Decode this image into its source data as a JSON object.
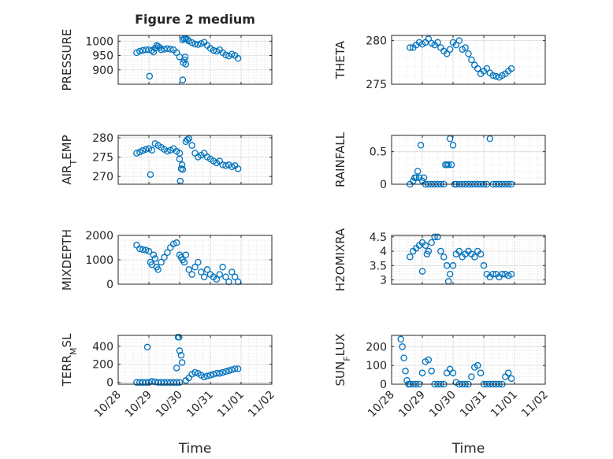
{
  "chart_data": [
    {
      "type": "scatter",
      "title": "Figure 2 medium",
      "ylabel": "PRESSURE",
      "xlabel": "",
      "ylim": [
        850,
        1020
      ],
      "yticks": [
        900,
        950,
        1000
      ],
      "xlim": [
        0,
        5
      ],
      "x_tick_labels": [
        "10/28",
        "10/29",
        "10/30",
        "10/31",
        "11/01",
        "11/02"
      ],
      "grid": true,
      "series": [
        {
          "x": [
            0.6,
            0.7,
            0.8,
            0.9,
            1.0,
            1.1,
            1.15,
            1.2,
            1.25,
            1.3,
            1.35,
            1.4,
            1.5,
            1.6,
            1.7,
            1.8,
            1.9,
            2.0,
            2.1,
            2.15,
            2.2,
            2.25,
            2.3,
            2.4,
            2.5,
            2.6,
            2.7,
            2.8,
            2.9,
            3.0,
            3.1,
            3.2,
            3.3,
            3.4,
            3.5,
            3.6,
            3.7,
            3.8,
            3.9,
            1.02,
            2.1,
            2.12,
            2.15,
            2.18,
            2.2
          ],
          "y": [
            960,
            965,
            968,
            970,
            970,
            968,
            962,
            975,
            985,
            982,
            978,
            970,
            972,
            974,
            972,
            970,
            960,
            945,
            1005,
            1008,
            1008,
            1006,
            1000,
            995,
            990,
            988,
            992,
            996,
            985,
            975,
            968,
            965,
            970,
            960,
            952,
            948,
            955,
            950,
            940,
            878,
            865,
            925,
            935,
            945,
            920
          ]
        }
      ]
    },
    {
      "type": "scatter",
      "ylabel": "THETA",
      "xlabel": "",
      "ylim": [
        275,
        280.6
      ],
      "yticks": [
        275,
        280
      ],
      "xlim": [
        0,
        5
      ],
      "x_tick_labels": [
        "10/28",
        "10/29",
        "10/30",
        "10/31",
        "11/01",
        "11/02"
      ],
      "grid": true,
      "series": [
        {
          "x": [
            0.6,
            0.7,
            0.8,
            0.9,
            1.0,
            1.1,
            1.2,
            1.3,
            1.4,
            1.5,
            1.6,
            1.7,
            1.8,
            1.9,
            2.0,
            2.1,
            2.2,
            2.3,
            2.4,
            2.5,
            2.6,
            2.7,
            2.8,
            2.9,
            3.0,
            3.1,
            3.2,
            3.3,
            3.4,
            3.5,
            3.6,
            3.7,
            3.8,
            3.9
          ],
          "y": [
            279.2,
            279.2,
            279.5,
            279.8,
            279.6,
            279.8,
            280.2,
            279.7,
            279.5,
            279.8,
            279.2,
            278.8,
            278.5,
            279.0,
            279.8,
            279.5,
            280.0,
            279.0,
            279.2,
            278.5,
            277.8,
            277.2,
            276.8,
            276.2,
            276.5,
            276.8,
            276.3,
            276.0,
            275.9,
            275.8,
            276.0,
            276.2,
            276.5,
            276.8
          ]
        }
      ]
    },
    {
      "type": "scatter",
      "ylabel": "AIR_TEMP",
      "xlabel": "",
      "ylim": [
        268,
        280.6
      ],
      "yticks": [
        270,
        275,
        280
      ],
      "xlim": [
        0,
        5
      ],
      "x_tick_labels": [
        "10/28",
        "10/29",
        "10/30",
        "10/31",
        "11/01",
        "11/02"
      ],
      "grid": true,
      "series": [
        {
          "x": [
            0.6,
            0.7,
            0.8,
            0.9,
            1.0,
            1.1,
            1.2,
            1.3,
            1.4,
            1.5,
            1.6,
            1.7,
            1.8,
            1.9,
            2.0,
            2.2,
            2.25,
            2.3,
            2.4,
            2.5,
            2.6,
            2.7,
            2.8,
            2.9,
            3.0,
            3.1,
            3.2,
            3.3,
            3.4,
            3.5,
            3.6,
            3.7,
            3.8,
            3.9,
            1.05,
            2.0,
            2.02,
            2.05,
            2.08,
            2.1
          ],
          "y": [
            276,
            276.3,
            276.7,
            277,
            277.2,
            276.8,
            278.5,
            278.0,
            277.5,
            277.0,
            276.5,
            276.8,
            277.2,
            276.5,
            276.0,
            279.0,
            279.5,
            279.8,
            278.0,
            276.0,
            275.0,
            275.5,
            276.0,
            275.0,
            274.5,
            274.0,
            273.5,
            274.0,
            273.0,
            272.8,
            273.0,
            272.5,
            272.8,
            272.0,
            270.5,
            274.5,
            268.8,
            272.0,
            273.0,
            271.8
          ]
        }
      ]
    },
    {
      "type": "scatter",
      "ylabel": "RAINFALL",
      "xlabel": "",
      "ylim": [
        0,
        0.75
      ],
      "yticks": [
        0,
        0.5
      ],
      "xlim": [
        0,
        5
      ],
      "x_tick_labels": [
        "10/28",
        "10/29",
        "10/30",
        "10/31",
        "11/01",
        "11/02"
      ],
      "grid": true,
      "series": [
        {
          "x": [
            0.6,
            0.7,
            0.75,
            0.8,
            0.85,
            0.9,
            0.95,
            1.0,
            1.05,
            1.1,
            1.2,
            1.3,
            1.4,
            1.5,
            1.6,
            1.7,
            1.75,
            1.8,
            1.85,
            1.9,
            1.95,
            2.0,
            2.05,
            2.1,
            2.2,
            2.3,
            2.4,
            2.5,
            2.6,
            2.7,
            2.8,
            2.9,
            3.0,
            3.1,
            3.2,
            3.3,
            3.4,
            3.5,
            3.6,
            3.7,
            3.8,
            3.9
          ],
          "y": [
            0,
            0.05,
            0.1,
            0.1,
            0.2,
            0.1,
            0.6,
            0.05,
            0.1,
            0,
            0,
            0,
            0,
            0,
            0,
            0,
            0.3,
            0.3,
            0.3,
            0.7,
            0.3,
            0.6,
            0,
            0,
            0,
            0,
            0,
            0,
            0,
            0,
            0,
            0,
            0,
            0,
            0.7,
            0,
            0,
            0,
            0,
            0,
            0,
            0
          ]
        }
      ]
    },
    {
      "type": "scatter",
      "ylabel": "MIXDEPTH",
      "xlabel": "",
      "ylim": [
        0,
        2000
      ],
      "yticks": [
        0,
        1000,
        2000
      ],
      "xlim": [
        0,
        5
      ],
      "x_tick_labels": [
        "10/28",
        "10/29",
        "10/30",
        "10/31",
        "11/01",
        "11/02"
      ],
      "grid": true,
      "series": [
        {
          "x": [
            0.6,
            0.7,
            0.8,
            0.9,
            1.0,
            1.05,
            1.1,
            1.15,
            1.2,
            1.25,
            1.3,
            1.4,
            1.5,
            1.6,
            1.7,
            1.8,
            1.9,
            2.0,
            2.05,
            2.1,
            2.15,
            2.2,
            2.3,
            2.4,
            2.5,
            2.6,
            2.7,
            2.8,
            2.9,
            3.0,
            3.1,
            3.2,
            3.3,
            3.4,
            3.5,
            3.6,
            3.7,
            3.8,
            3.9
          ],
          "y": [
            1600,
            1450,
            1420,
            1400,
            1350,
            900,
            800,
            1200,
            1050,
            700,
            600,
            900,
            1100,
            1300,
            1500,
            1650,
            1700,
            1200,
            1100,
            1000,
            900,
            1200,
            600,
            400,
            700,
            900,
            500,
            300,
            600,
            400,
            300,
            200,
            400,
            700,
            300,
            100,
            500,
            300,
            100
          ]
        }
      ]
    },
    {
      "type": "scatter",
      "ylabel": "H2OMIXRA",
      "xlabel": "",
      "ylim": [
        2.85,
        4.55
      ],
      "yticks": [
        3,
        3.5,
        4,
        4.5
      ],
      "xlim": [
        0,
        5
      ],
      "x_tick_labels": [
        "10/28",
        "10/29",
        "10/30",
        "10/31",
        "11/01",
        "11/02"
      ],
      "grid": true,
      "series": [
        {
          "x": [
            0.6,
            0.7,
            0.8,
            0.9,
            1.0,
            1.1,
            1.15,
            1.2,
            1.3,
            1.4,
            1.5,
            1.6,
            1.7,
            1.8,
            1.9,
            2.0,
            2.1,
            2.2,
            2.3,
            2.4,
            2.5,
            2.6,
            2.7,
            2.8,
            2.9,
            3.0,
            3.1,
            3.2,
            3.3,
            3.4,
            3.5,
            3.6,
            3.7,
            3.8,
            3.9,
            1.0,
            1.85
          ],
          "y": [
            3.8,
            4.0,
            4.1,
            4.2,
            4.3,
            4.2,
            3.9,
            4.0,
            4.3,
            4.5,
            4.5,
            4.0,
            3.8,
            3.5,
            3.2,
            3.5,
            3.9,
            4.0,
            3.8,
            3.9,
            4.0,
            3.9,
            3.8,
            4.0,
            3.9,
            3.5,
            3.2,
            3.1,
            3.2,
            3.2,
            3.1,
            3.2,
            3.2,
            3.15,
            3.2,
            3.3,
            2.95
          ]
        }
      ]
    },
    {
      "type": "scatter",
      "ylabel": "TERR_MSL",
      "xlabel": "Time",
      "ylim": [
        -20,
        520
      ],
      "yticks": [
        0,
        200,
        400
      ],
      "xlim": [
        0,
        5
      ],
      "x_tick_labels": [
        "10/28",
        "10/29",
        "10/30",
        "10/31",
        "11/01",
        "11/02"
      ],
      "grid": true,
      "series": [
        {
          "x": [
            0.6,
            0.7,
            0.8,
            0.9,
            1.0,
            1.1,
            1.2,
            1.3,
            1.4,
            1.5,
            1.6,
            1.7,
            1.8,
            1.9,
            2.0,
            2.2,
            2.3,
            2.4,
            2.5,
            2.6,
            2.7,
            2.8,
            2.9,
            3.0,
            3.1,
            3.2,
            3.3,
            3.4,
            3.5,
            3.6,
            3.7,
            3.8,
            3.9,
            0.95,
            1.9,
            1.95,
            1.98,
            2.0,
            2.05,
            2.08
          ],
          "y": [
            0,
            0,
            0,
            0,
            0,
            10,
            5,
            0,
            0,
            0,
            0,
            0,
            0,
            0,
            0,
            20,
            50,
            90,
            110,
            100,
            80,
            60,
            70,
            80,
            90,
            100,
            100,
            110,
            120,
            130,
            140,
            150,
            150,
            390,
            160,
            500,
            500,
            350,
            300,
            220
          ]
        }
      ]
    },
    {
      "type": "scatter",
      "ylabel": "SUN_FLUX",
      "xlabel": "Time",
      "ylim": [
        0,
        260
      ],
      "yticks": [
        0,
        100,
        200
      ],
      "xlim": [
        0,
        5
      ],
      "x_tick_labels": [
        "10/28",
        "10/29",
        "10/30",
        "10/31",
        "11/01",
        "11/02"
      ],
      "grid": true,
      "series": [
        {
          "x": [
            0.3,
            0.35,
            0.4,
            0.45,
            0.5,
            0.55,
            0.6,
            0.7,
            0.8,
            0.9,
            1.0,
            1.1,
            1.2,
            1.3,
            1.4,
            1.5,
            1.6,
            1.7,
            1.8,
            1.9,
            2.0,
            2.1,
            2.2,
            2.3,
            2.4,
            2.5,
            2.6,
            2.7,
            2.8,
            2.9,
            3.0,
            3.1,
            3.2,
            3.3,
            3.4,
            3.5,
            3.6,
            3.7,
            3.8,
            3.9
          ],
          "y": [
            240,
            200,
            140,
            70,
            20,
            0,
            0,
            0,
            0,
            0,
            60,
            120,
            130,
            70,
            0,
            0,
            0,
            0,
            60,
            80,
            60,
            10,
            0,
            0,
            0,
            0,
            40,
            90,
            100,
            60,
            0,
            0,
            0,
            0,
            0,
            0,
            0,
            40,
            60,
            30
          ]
        }
      ]
    }
  ]
}
